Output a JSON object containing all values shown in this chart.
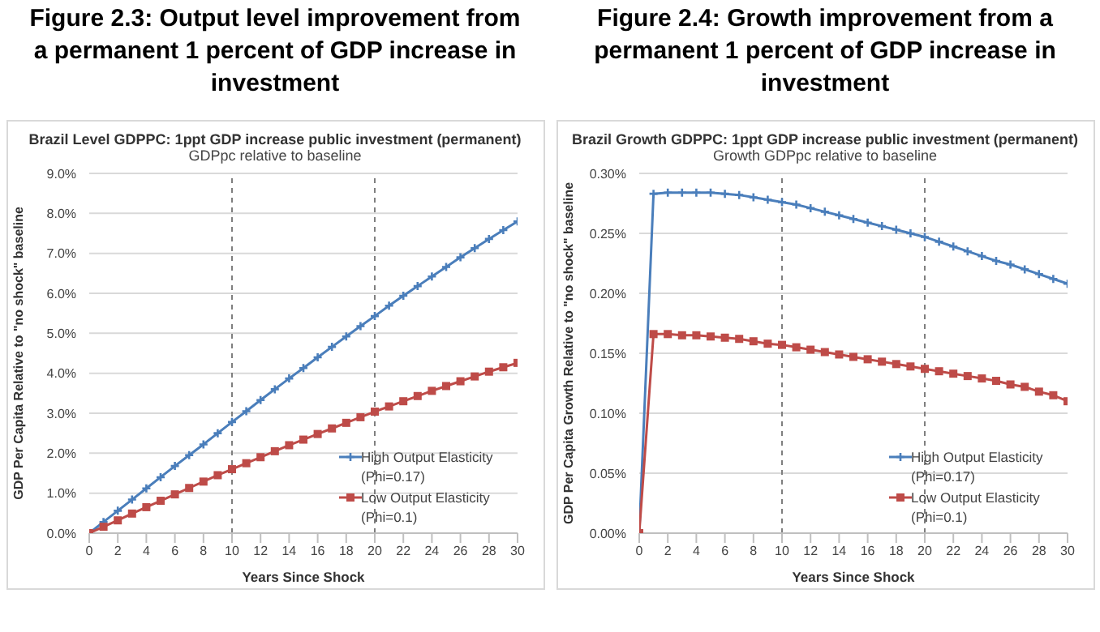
{
  "chart_data": [
    {
      "type": "line",
      "title": "Figure 2.3: Output level improvement from a permanent 1 percent of GDP increase in investment",
      "subtitle": "Brazil Level GDPPC: 1ppt GDP increase public investment (permanent)",
      "annotations": [
        "GDPpc relative to baseline"
      ],
      "xlabel": "Years Since Shock",
      "ylabel": "GDP Per Capita Relative to \"no shock\"  baseline",
      "x": [
        0,
        1,
        2,
        3,
        4,
        5,
        6,
        7,
        8,
        9,
        10,
        11,
        12,
        13,
        14,
        15,
        16,
        17,
        18,
        19,
        20,
        21,
        22,
        23,
        24,
        25,
        26,
        27,
        28,
        29,
        30
      ],
      "series": [
        {
          "name": "High Output Elasticity (Phi=0.17)",
          "color": "#4a7ebb",
          "marker": "cross",
          "values": [
            0,
            0.28,
            0.56,
            0.84,
            1.12,
            1.4,
            1.68,
            1.95,
            2.22,
            2.5,
            2.78,
            3.05,
            3.33,
            3.6,
            3.87,
            4.13,
            4.4,
            4.66,
            4.92,
            5.18,
            5.43,
            5.69,
            5.94,
            6.18,
            6.42,
            6.66,
            6.9,
            7.13,
            7.36,
            7.58,
            7.8
          ]
        },
        {
          "name": "Low Output Elasticity (Phi=0.1)",
          "color": "#be4b48",
          "marker": "square",
          "values": [
            0,
            0.16,
            0.32,
            0.49,
            0.65,
            0.81,
            0.97,
            1.13,
            1.29,
            1.45,
            1.6,
            1.75,
            1.9,
            2.05,
            2.2,
            2.34,
            2.48,
            2.62,
            2.76,
            2.9,
            3.04,
            3.17,
            3.3,
            3.43,
            3.56,
            3.68,
            3.8,
            3.92,
            4.04,
            4.15,
            4.26
          ]
        }
      ],
      "xlim": [
        0,
        30
      ],
      "xticks": [
        0,
        2,
        4,
        6,
        8,
        10,
        12,
        14,
        16,
        18,
        20,
        22,
        24,
        26,
        28,
        30
      ],
      "ylim": [
        0,
        9
      ],
      "yticks": [
        {
          "value": 0,
          "label": "0.0%"
        },
        {
          "value": 1,
          "label": "1.0%"
        },
        {
          "value": 2,
          "label": "2.0%"
        },
        {
          "value": 3,
          "label": "3.0%"
        },
        {
          "value": 4,
          "label": "4.0%"
        },
        {
          "value": 5,
          "label": "5.0%"
        },
        {
          "value": 6,
          "label": "6.0%"
        },
        {
          "value": 7,
          "label": "7.0%"
        },
        {
          "value": 8,
          "label": "8.0%"
        },
        {
          "value": 9,
          "label": "9.0%"
        }
      ],
      "ref_lines": [
        {
          "axis": "x",
          "value": 10,
          "color": "#7f7f7f",
          "line_style": "dashed"
        },
        {
          "axis": "x",
          "value": 20,
          "color": "#7f7f7f",
          "line_style": "dashed"
        }
      ],
      "grid": "y",
      "legend": "bottom right"
    },
    {
      "type": "line",
      "title": "Figure 2.4: Growth improvement from a permanent 1 percent of GDP increase in investment",
      "subtitle": "Brazil Growth GDPPC: 1ppt GDP increase public investment (permanent)",
      "annotations": [
        "Growth GDPpc relative to baseline"
      ],
      "xlabel": "Years Since Shock",
      "ylabel": "GDP Per Capita Growth Relative to \"no shock\"  baseline",
      "x": [
        0,
        1,
        2,
        3,
        4,
        5,
        6,
        7,
        8,
        9,
        10,
        11,
        12,
        13,
        14,
        15,
        16,
        17,
        18,
        19,
        20,
        21,
        22,
        23,
        24,
        25,
        26,
        27,
        28,
        29,
        30
      ],
      "series": [
        {
          "name": "High Output Elasticity (Phi=0.17)",
          "color": "#4a7ebb",
          "marker": "cross",
          "values": [
            0,
            0.283,
            0.284,
            0.284,
            0.284,
            0.284,
            0.283,
            0.282,
            0.28,
            0.278,
            0.276,
            0.274,
            0.271,
            0.268,
            0.265,
            0.262,
            0.259,
            0.256,
            0.253,
            0.25,
            0.247,
            0.243,
            0.239,
            0.235,
            0.231,
            0.227,
            0.224,
            0.22,
            0.216,
            0.212,
            0.208
          ]
        },
        {
          "name": "Low Output Elasticity (Phi=0.1)",
          "color": "#be4b48",
          "marker": "square",
          "values": [
            0,
            0.166,
            0.166,
            0.165,
            0.165,
            0.164,
            0.163,
            0.162,
            0.16,
            0.158,
            0.157,
            0.155,
            0.153,
            0.151,
            0.149,
            0.147,
            0.145,
            0.143,
            0.141,
            0.139,
            0.137,
            0.135,
            0.133,
            0.131,
            0.129,
            0.127,
            0.124,
            0.122,
            0.118,
            0.115,
            0.11
          ]
        }
      ],
      "xlim": [
        0,
        30
      ],
      "xticks": [
        0,
        2,
        4,
        6,
        8,
        10,
        12,
        14,
        16,
        18,
        20,
        22,
        24,
        26,
        28,
        30
      ],
      "ylim": [
        0,
        0.3
      ],
      "yticks": [
        {
          "value": 0,
          "label": "0.00%"
        },
        {
          "value": 0.05,
          "label": "0.05%"
        },
        {
          "value": 0.1,
          "label": "0.10%"
        },
        {
          "value": 0.15,
          "label": "0.15%"
        },
        {
          "value": 0.2,
          "label": "0.20%"
        },
        {
          "value": 0.25,
          "label": "0.25%"
        },
        {
          "value": 0.3,
          "label": "0.30%"
        }
      ],
      "ref_lines": [
        {
          "axis": "x",
          "value": 10,
          "color": "#7f7f7f",
          "line_style": "dashed"
        },
        {
          "axis": "x",
          "value": 20,
          "color": "#7f7f7f",
          "line_style": "dashed"
        }
      ],
      "grid": "y",
      "legend": "bottom right"
    }
  ]
}
